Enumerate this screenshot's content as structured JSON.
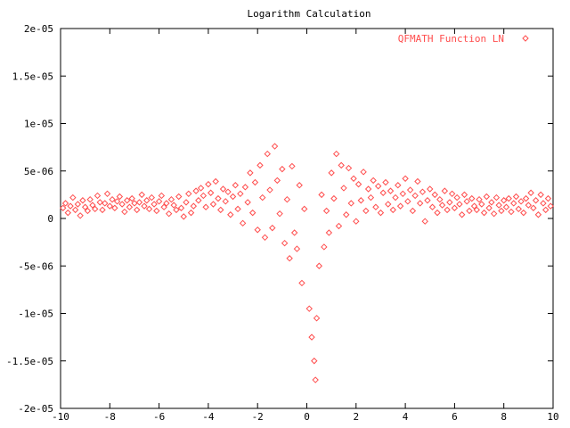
{
  "colors": {
    "background": "#ffffff",
    "axis": "#000000",
    "series": "#ff4d4d"
  },
  "chart_data": {
    "type": "scatter",
    "title": "Logarithm Calculation",
    "xlabel": "",
    "ylabel": "",
    "xlim": [
      -10,
      10
    ],
    "ylim": [
      -2e-05,
      2e-05
    ],
    "grid": false,
    "legend_position": "top-right",
    "x_ticks": [
      -10,
      -8,
      -6,
      -4,
      -2,
      0,
      2,
      4,
      6,
      8,
      10
    ],
    "x_tick_labels": [
      "-10",
      "-8",
      "-6",
      "-4",
      "-2",
      "0",
      "2",
      "4",
      "6",
      "8",
      "10"
    ],
    "y_ticks": [
      -2e-05,
      -1.5e-05,
      -1e-05,
      -5e-06,
      0,
      5e-06,
      1e-05,
      1.5e-05,
      2e-05
    ],
    "y_tick_labels": [
      "-2e-05",
      "-1.5e-05",
      "-1e-05",
      "-5e-06",
      "0",
      "5e-06",
      "1e-05",
      "1.5e-05",
      "2e-05"
    ],
    "series": [
      {
        "name": "QFMATH Function LN",
        "marker": "diamond",
        "points": [
          [
            -9.9,
            1.1e-06
          ],
          [
            -9.8,
            1.6e-06
          ],
          [
            -9.7,
            6e-07
          ],
          [
            -9.6,
            1.3e-06
          ],
          [
            -9.5,
            2.2e-06
          ],
          [
            -9.4,
            9e-07
          ],
          [
            -9.3,
            1.5e-06
          ],
          [
            -9.2,
            3e-07
          ],
          [
            -9.1,
            1.9e-06
          ],
          [
            -9.0,
            1.2e-06
          ],
          [
            -8.9,
            8e-07
          ],
          [
            -8.8,
            2e-06
          ],
          [
            -8.7,
            1.4e-06
          ],
          [
            -8.6,
            1e-06
          ],
          [
            -8.5,
            2.4e-06
          ],
          [
            -8.4,
            1.7e-06
          ],
          [
            -8.3,
            9e-07
          ],
          [
            -8.2,
            1.6e-06
          ],
          [
            -8.1,
            2.6e-06
          ],
          [
            -8.0,
            1.3e-06
          ],
          [
            -7.9,
            2e-06
          ],
          [
            -7.8,
            1.1e-06
          ],
          [
            -7.7,
            1.8e-06
          ],
          [
            -7.6,
            2.3e-06
          ],
          [
            -7.5,
            1.5e-06
          ],
          [
            -7.4,
            7e-07
          ],
          [
            -7.3,
            1.9e-06
          ],
          [
            -7.2,
            1.2e-06
          ],
          [
            -7.1,
            2.1e-06
          ],
          [
            -7.0,
            1.6e-06
          ],
          [
            -6.9,
            9e-07
          ],
          [
            -6.8,
            1.7e-06
          ],
          [
            -6.7,
            2.5e-06
          ],
          [
            -6.6,
            1.3e-06
          ],
          [
            -6.5,
            1.9e-06
          ],
          [
            -6.4,
            1e-06
          ],
          [
            -6.3,
            2.2e-06
          ],
          [
            -6.2,
            1.5e-06
          ],
          [
            -6.1,
            8e-07
          ],
          [
            -6.0,
            1.8e-06
          ],
          [
            -5.9,
            2.4e-06
          ],
          [
            -5.8,
            1.2e-06
          ],
          [
            -5.7,
            1.6e-06
          ],
          [
            -5.6,
            5e-07
          ],
          [
            -5.5,
            2e-06
          ],
          [
            -5.4,
            1.4e-06
          ],
          [
            -5.3,
            9e-07
          ],
          [
            -5.2,
            2.3e-06
          ],
          [
            -5.1,
            1.1e-06
          ],
          [
            -5.0,
            2e-07
          ],
          [
            -4.9,
            1.7e-06
          ],
          [
            -4.8,
            2.6e-06
          ],
          [
            -4.7,
            6e-07
          ],
          [
            -4.6,
            1.3e-06
          ],
          [
            -4.5,
            2.9e-06
          ],
          [
            -4.4,
            1.9e-06
          ],
          [
            -4.3,
            3.2e-06
          ],
          [
            -4.2,
            2.4e-06
          ],
          [
            -4.1,
            1.2e-06
          ],
          [
            -4.0,
            3.6e-06
          ],
          [
            -3.9,
            2.7e-06
          ],
          [
            -3.8,
            1.5e-06
          ],
          [
            -3.7,
            3.9e-06
          ],
          [
            -3.6,
            2.1e-06
          ],
          [
            -3.5,
            9e-07
          ],
          [
            -3.4,
            3.1e-06
          ],
          [
            -3.3,
            1.8e-06
          ],
          [
            -3.2,
            2.8e-06
          ],
          [
            -3.1,
            4e-07
          ],
          [
            -3.0,
            2.3e-06
          ],
          [
            -2.9,
            3.5e-06
          ],
          [
            -2.8,
            1e-06
          ],
          [
            -2.7,
            2.6e-06
          ],
          [
            -2.6,
            -5e-07
          ],
          [
            -2.5,
            3.3e-06
          ],
          [
            -2.4,
            1.7e-06
          ],
          [
            -2.3,
            4.8e-06
          ],
          [
            -2.2,
            6e-07
          ],
          [
            -2.1,
            3.8e-06
          ],
          [
            -2.0,
            -1.2e-06
          ],
          [
            -1.9,
            5.6e-06
          ],
          [
            -1.8,
            2.2e-06
          ],
          [
            -1.7,
            -2e-06
          ],
          [
            -1.6,
            6.8e-06
          ],
          [
            -1.5,
            3e-06
          ],
          [
            -1.4,
            -1e-06
          ],
          [
            -1.3,
            7.6e-06
          ],
          [
            -1.2,
            4e-06
          ],
          [
            -1.1,
            5e-07
          ],
          [
            -1.0,
            5.2e-06
          ],
          [
            -0.9,
            -2.6e-06
          ],
          [
            -0.8,
            2e-06
          ],
          [
            -0.7,
            -4.2e-06
          ],
          [
            -0.6,
            5.5e-06
          ],
          [
            -0.5,
            -1.5e-06
          ],
          [
            -0.4,
            -3.2e-06
          ],
          [
            -0.3,
            3.5e-06
          ],
          [
            -0.2,
            -6.8e-06
          ],
          [
            -0.1,
            1e-06
          ],
          [
            0.1,
            -9.5e-06
          ],
          [
            0.2,
            -1.25e-05
          ],
          [
            0.3,
            -1.5e-05
          ],
          [
            0.35,
            -1.7e-05
          ],
          [
            0.4,
            -1.05e-05
          ],
          [
            0.5,
            -5e-06
          ],
          [
            0.6,
            2.5e-06
          ],
          [
            0.7,
            -3e-06
          ],
          [
            0.8,
            8e-07
          ],
          [
            0.9,
            -1.5e-06
          ],
          [
            1.0,
            4.8e-06
          ],
          [
            1.1,
            2.1e-06
          ],
          [
            1.2,
            6.8e-06
          ],
          [
            1.3,
            -8e-07
          ],
          [
            1.4,
            5.6e-06
          ],
          [
            1.5,
            3.2e-06
          ],
          [
            1.6,
            4e-07
          ],
          [
            1.7,
            5.3e-06
          ],
          [
            1.8,
            1.6e-06
          ],
          [
            1.9,
            4.2e-06
          ],
          [
            2.0,
            -3e-07
          ],
          [
            2.1,
            3.6e-06
          ],
          [
            2.2,
            1.9e-06
          ],
          [
            2.3,
            4.9e-06
          ],
          [
            2.4,
            8e-07
          ],
          [
            2.5,
            3.1e-06
          ],
          [
            2.6,
            2.2e-06
          ],
          [
            2.7,
            4e-06
          ],
          [
            2.8,
            1.2e-06
          ],
          [
            2.9,
            3.4e-06
          ],
          [
            3.0,
            6e-07
          ],
          [
            3.1,
            2.7e-06
          ],
          [
            3.2,
            3.8e-06
          ],
          [
            3.3,
            1.5e-06
          ],
          [
            3.4,
            2.9e-06
          ],
          [
            3.5,
            9e-07
          ],
          [
            3.6,
            2.2e-06
          ],
          [
            3.7,
            3.5e-06
          ],
          [
            3.8,
            1.3e-06
          ],
          [
            3.9,
            2.6e-06
          ],
          [
            4.0,
            4.2e-06
          ],
          [
            4.1,
            1.8e-06
          ],
          [
            4.2,
            3e-06
          ],
          [
            4.3,
            8e-07
          ],
          [
            4.4,
            2.4e-06
          ],
          [
            4.5,
            3.9e-06
          ],
          [
            4.6,
            1.6e-06
          ],
          [
            4.7,
            2.8e-06
          ],
          [
            4.8,
            -3e-07
          ],
          [
            4.9,
            1.9e-06
          ],
          [
            5.0,
            3.1e-06
          ],
          [
            5.1,
            1.2e-06
          ],
          [
            5.2,
            2.5e-06
          ],
          [
            5.3,
            6e-07
          ],
          [
            5.4,
            2e-06
          ],
          [
            5.5,
            1.4e-06
          ],
          [
            5.6,
            2.9e-06
          ],
          [
            5.7,
            9e-07
          ],
          [
            5.8,
            1.7e-06
          ],
          [
            5.9,
            2.6e-06
          ],
          [
            6.0,
            1.1e-06
          ],
          [
            6.1,
            2.2e-06
          ],
          [
            6.2,
            1.5e-06
          ],
          [
            6.3,
            4e-07
          ],
          [
            6.4,
            2.5e-06
          ],
          [
            6.5,
            1.8e-06
          ],
          [
            6.6,
            8e-07
          ],
          [
            6.7,
            2.1e-06
          ],
          [
            6.8,
            1.3e-06
          ],
          [
            6.9,
            9e-07
          ],
          [
            7.0,
            2e-06
          ],
          [
            7.1,
            1.5e-06
          ],
          [
            7.2,
            6e-07
          ],
          [
            7.3,
            2.3e-06
          ],
          [
            7.4,
            1.1e-06
          ],
          [
            7.5,
            1.7e-06
          ],
          [
            7.6,
            5e-07
          ],
          [
            7.7,
            2.2e-06
          ],
          [
            7.8,
            1.4e-06
          ],
          [
            7.9,
            8e-07
          ],
          [
            8.0,
            1.9e-06
          ],
          [
            8.1,
            1.2e-06
          ],
          [
            8.2,
            2.1e-06
          ],
          [
            8.3,
            7e-07
          ],
          [
            8.4,
            1.6e-06
          ],
          [
            8.5,
            2.3e-06
          ],
          [
            8.6,
            1e-06
          ],
          [
            8.7,
            1.8e-06
          ],
          [
            8.8,
            6e-07
          ],
          [
            8.9,
            2.1e-06
          ],
          [
            9.0,
            1.4e-06
          ],
          [
            9.1,
            2.7e-06
          ],
          [
            9.2,
            1.1e-06
          ],
          [
            9.3,
            1.9e-06
          ],
          [
            9.4,
            4e-07
          ],
          [
            9.5,
            2.5e-06
          ],
          [
            9.6,
            1.6e-06
          ],
          [
            9.7,
            9e-07
          ],
          [
            9.8,
            2.1e-06
          ],
          [
            9.9,
            1.3e-06
          ]
        ]
      }
    ]
  }
}
